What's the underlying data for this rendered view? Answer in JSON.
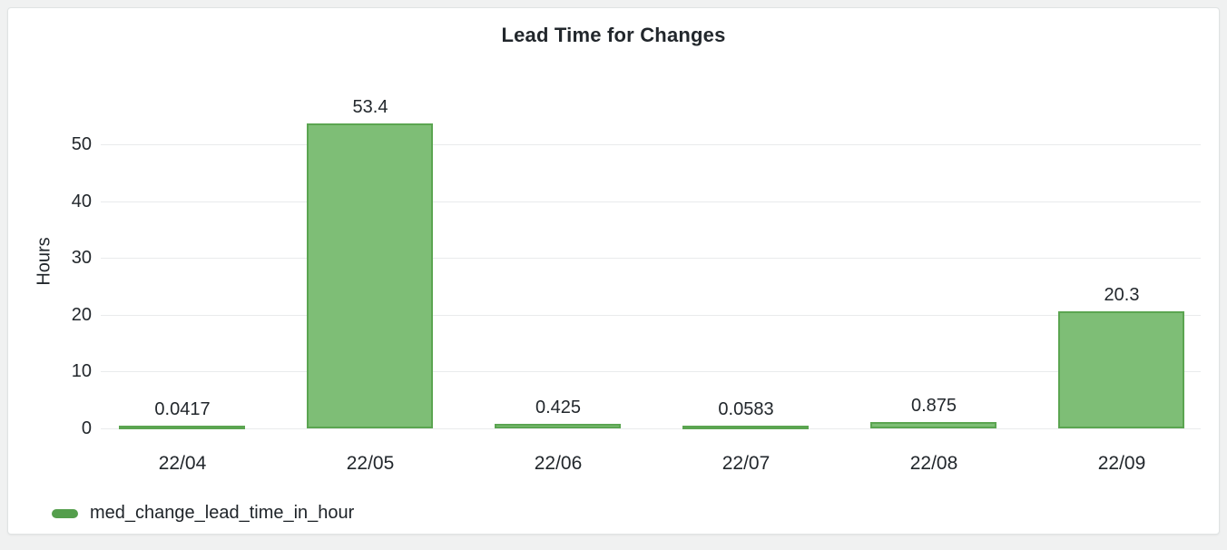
{
  "panel": {
    "title": "Lead Time for Changes"
  },
  "chart_data": {
    "type": "bar",
    "title": "Lead Time for Changes",
    "categories": [
      "22/04",
      "22/05",
      "22/06",
      "22/07",
      "22/08",
      "22/09"
    ],
    "series": [
      {
        "name": "med_change_lead_time_in_hour",
        "values": [
          0.0417,
          53.4,
          0.425,
          0.0583,
          0.875,
          20.3
        ]
      }
    ],
    "value_labels": [
      "0.0417",
      "53.4",
      "0.425",
      "0.0583",
      "0.875",
      "20.3"
    ],
    "xlabel": "",
    "ylabel": "Hours",
    "ylim": [
      0,
      55
    ],
    "yticks": [
      0,
      10,
      20,
      30,
      40,
      50
    ],
    "grid": true,
    "legend_position": "bottom-left",
    "colors": {
      "bar_fill": "#7ebe76",
      "bar_border": "#5ba551",
      "legend_marker": "#549e4c",
      "text": "#22272c",
      "gridline": "#e9ebec",
      "panel_background": "#ffffff",
      "page_background": "#f0f1f1"
    }
  },
  "legend": {
    "items": [
      {
        "label": "med_change_lead_time_in_hour",
        "color": "#549e4c"
      }
    ]
  }
}
